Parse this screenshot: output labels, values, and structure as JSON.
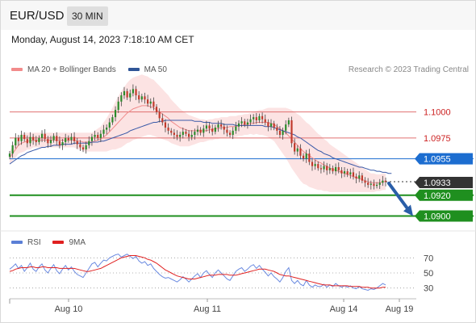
{
  "header": {
    "symbol": "EUR/USD",
    "timeframe": "30 MIN"
  },
  "timestamp": "Monday, August 14, 2023 7:18:10 AM CET",
  "legend": {
    "items": [
      {
        "label": "MA 20 + Bollinger Bands",
        "color": "#f28b8b"
      },
      {
        "label": "MA 50",
        "color": "#2f5597"
      }
    ]
  },
  "credit": "Research © 2023 Trading Central",
  "chart_data": {
    "type": "candlestick",
    "price_range": [
      1.0888,
      1.103
    ],
    "x_ticks": [
      "Aug 10",
      "Aug 11",
      "Aug 14",
      "Aug 19"
    ],
    "levels": [
      {
        "label": "1.1000",
        "value": 1.1,
        "kind": "resistance",
        "color": "#e07070"
      },
      {
        "label": "1.0975",
        "value": 1.0975,
        "kind": "resistance",
        "color": "#e07070"
      },
      {
        "label": "1.0955",
        "value": 1.0955,
        "kind": "pivot",
        "color": "#1c6dd0"
      },
      {
        "label": "1.0933",
        "value": 1.0933,
        "kind": "last",
        "color": "#333333"
      },
      {
        "label": "1.0920",
        "value": 1.092,
        "kind": "support",
        "color": "#1f8f1f"
      },
      {
        "label": "1.0900",
        "value": 1.09,
        "kind": "support",
        "color": "#1f8f1f"
      }
    ],
    "closes": [
      1.096,
      1.0968,
      1.0975,
      1.0972,
      1.0978,
      1.0974,
      1.097,
      1.0976,
      1.0973,
      1.0971,
      1.0975,
      1.0979,
      1.0974,
      1.097,
      1.0973,
      1.0977,
      1.0972,
      1.0968,
      1.0971,
      1.0975,
      1.0973,
      1.0976,
      1.0972,
      1.0969,
      1.0966,
      1.0964,
      1.0968,
      1.0972,
      1.0976,
      1.0978,
      1.0975,
      1.0979,
      1.0983,
      1.0985,
      1.099,
      1.0995,
      1.1002,
      1.101,
      1.1016,
      1.102,
      1.1014,
      1.1018,
      1.1022,
      1.1016,
      1.1012,
      1.1015,
      1.1012,
      1.1008,
      1.101,
      1.1005,
      1.1,
      1.0994,
      1.099,
      1.0985,
      1.0982,
      1.098,
      1.0978,
      1.0976,
      1.0978,
      1.0981,
      1.0979,
      1.0976,
      1.0978,
      1.0981,
      1.0983,
      1.098,
      1.0984,
      1.0987,
      1.0984,
      1.0981,
      1.0985,
      1.0988,
      1.0986,
      1.0983,
      1.098,
      1.0978,
      1.0982,
      1.0986,
      1.0989,
      1.0991,
      1.0988,
      1.099,
      1.0993,
      1.0995,
      1.0992,
      1.0996,
      1.0993,
      1.099,
      1.0986,
      1.0989,
      1.0985,
      1.0982,
      1.0978,
      1.0982,
      1.0988,
      1.0992,
      1.097,
      1.0962,
      1.0965,
      1.0958,
      1.0955,
      1.096,
      1.0952,
      1.0948,
      1.095,
      1.0946,
      1.0945,
      1.0948,
      1.0944,
      1.0946,
      1.0943,
      1.0947,
      1.0944,
      1.0941,
      1.0943,
      1.094,
      1.0942,
      1.0938,
      1.0936,
      1.0939,
      1.0934,
      1.0932,
      1.093,
      1.0931,
      1.0929,
      1.093,
      1.0932,
      1.0934,
      1.0933
    ],
    "ma20": [
      1.0956,
      1.096,
      1.0964,
      1.0968,
      1.097,
      1.0971,
      1.0972,
      1.0972,
      1.0973,
      1.0973,
      1.0973,
      1.0973,
      1.0973,
      1.0973,
      1.0973,
      1.0973,
      1.0973,
      1.0973,
      1.0973,
      1.0973,
      1.0973,
      1.0973,
      1.0973,
      1.0972,
      1.0972,
      1.0971,
      1.0971,
      1.0971,
      1.0971,
      1.0972,
      1.0973,
      1.0974,
      1.0976,
      1.0978,
      1.0981,
      1.0984,
      1.0987,
      1.099,
      1.0993,
      1.0996,
      1.0999,
      1.1001,
      1.1003,
      1.1004,
      1.1005,
      1.1006,
      1.1006,
      1.1006,
      1.1005,
      1.1004,
      1.1002,
      1.1,
      1.0998,
      1.0996,
      1.0994,
      1.0991,
      1.0989,
      1.0987,
      1.0985,
      1.0984,
      1.0983,
      1.0982,
      1.0982,
      1.0982,
      1.0982,
      1.0982,
      1.0982,
      1.0982,
      1.0983,
      1.0983,
      1.0984,
      1.0984,
      1.0985,
      1.0985,
      1.0985,
      1.0986,
      1.0986,
      1.0986,
      1.0987,
      1.0987,
      1.0988,
      1.0988,
      1.0989,
      1.0989,
      1.099,
      1.099,
      1.099,
      1.099,
      1.099,
      1.0989,
      1.0988,
      1.0986,
      1.0984,
      1.0982,
      1.098,
      1.0977,
      1.0974,
      1.0971,
      1.0968,
      1.0965,
      1.0962,
      1.096,
      1.0958,
      1.0956,
      1.0954,
      1.0952,
      1.0951,
      1.0949,
      1.0948,
      1.0946,
      1.0945,
      1.0944,
      1.0943,
      1.0942,
      1.0941,
      1.094,
      1.0939,
      1.0938,
      1.0937,
      1.0936,
      1.0935,
      1.0934,
      1.0933,
      1.0932,
      1.0932,
      1.0932,
      1.0932,
      1.0933,
      1.0933
    ],
    "ma50": [
      1.095,
      1.0952,
      1.0954,
      1.0956,
      1.0958,
      1.0959,
      1.0961,
      1.0962,
      1.0963,
      1.0964,
      1.0965,
      1.0966,
      1.0966,
      1.0967,
      1.0967,
      1.0968,
      1.0968,
      1.0968,
      1.0969,
      1.0969,
      1.0969,
      1.0969,
      1.097,
      1.097,
      1.097,
      1.097,
      1.097,
      1.097,
      1.0971,
      1.0971,
      1.0971,
      1.0972,
      1.0972,
      1.0973,
      1.0974,
      1.0975,
      1.0976,
      1.0977,
      1.0978,
      1.0979,
      1.098,
      1.0982,
      1.0983,
      1.0984,
      1.0985,
      1.0986,
      1.0987,
      1.0988,
      1.0989,
      1.099,
      1.099,
      1.0991,
      1.0991,
      1.0992,
      1.0992,
      1.0992,
      1.0992,
      1.0992,
      1.0992,
      1.0992,
      1.0992,
      1.0992,
      1.0992,
      1.0991,
      1.0991,
      1.0991,
      1.099,
      1.099,
      1.099,
      1.0989,
      1.0989,
      1.0989,
      1.0989,
      1.0988,
      1.0988,
      1.0988,
      1.0988,
      1.0987,
      1.0987,
      1.0987,
      1.0987,
      1.0987,
      1.0987,
      1.0987,
      1.0987,
      1.0987,
      1.0987,
      1.0986,
      1.0986,
      1.0986,
      1.0985,
      1.0984,
      1.0983,
      1.0982,
      1.0981,
      1.098,
      1.0979,
      1.0978,
      1.0976,
      1.0975,
      1.0973,
      1.0971,
      1.0969,
      1.0967,
      1.0965,
      1.0963,
      1.0962,
      1.096,
      1.0959,
      1.0958,
      1.0956,
      1.0955,
      1.0954,
      1.0953,
      1.0952,
      1.0951,
      1.095,
      1.0949,
      1.0948,
      1.0947,
      1.0947,
      1.0946,
      1.0945,
      1.0944,
      1.0944,
      1.0943,
      1.0943,
      1.0942,
      1.0942,
      1.0941,
      1.0941
    ],
    "bands_width": [
      0.0006,
      0.0007,
      0.0008,
      0.0008,
      0.0009,
      0.0009,
      0.0008,
      0.0008,
      0.0007,
      0.0007,
      0.0007,
      0.0007,
      0.0007,
      0.0007,
      0.0007,
      0.0007,
      0.0007,
      0.0007,
      0.0007,
      0.0007,
      0.0007,
      0.0007,
      0.0007,
      0.0008,
      0.0008,
      0.0009,
      0.0009,
      0.0009,
      0.0009,
      0.001,
      0.0011,
      0.0012,
      0.0014,
      0.0016,
      0.0018,
      0.002,
      0.0023,
      0.0025,
      0.0027,
      0.0028,
      0.0029,
      0.003,
      0.003,
      0.003,
      0.003,
      0.003,
      0.0029,
      0.0028,
      0.0027,
      0.0027,
      0.0026,
      0.0025,
      0.0024,
      0.0023,
      0.0022,
      0.0021,
      0.002,
      0.0019,
      0.0018,
      0.0017,
      0.0016,
      0.0015,
      0.0014,
      0.0013,
      0.0012,
      0.0011,
      0.0011,
      0.001,
      0.001,
      0.001,
      0.001,
      0.001,
      0.001,
      0.001,
      0.001,
      0.001,
      0.001,
      0.001,
      0.001,
      0.001,
      0.001,
      0.001,
      0.001,
      0.0011,
      0.0011,
      0.0012,
      0.0012,
      0.0013,
      0.0014,
      0.0015,
      0.0016,
      0.0018,
      0.002,
      0.0022,
      0.0024,
      0.0026,
      0.0028,
      0.0029,
      0.003,
      0.0031,
      0.0031,
      0.003,
      0.003,
      0.0029,
      0.0028,
      0.0027,
      0.0026,
      0.0025,
      0.0024,
      0.0023,
      0.0022,
      0.0021,
      0.002,
      0.0019,
      0.0018,
      0.0017,
      0.0016,
      0.0015,
      0.0014,
      0.0013,
      0.0012,
      0.0011,
      0.001,
      0.0009,
      0.0009,
      0.0008,
      0.0008,
      0.0008,
      0.0008
    ],
    "projection": {
      "from": 1.0933,
      "to": 1.09
    },
    "rsi": {
      "levels": [
        70,
        50,
        30
      ],
      "range": [
        20,
        80
      ],
      "rsi": [
        55,
        58,
        62,
        56,
        60,
        52,
        57,
        63,
        55,
        52,
        58,
        62,
        54,
        50,
        56,
        61,
        53,
        49,
        55,
        60,
        54,
        58,
        52,
        48,
        46,
        44,
        50,
        56,
        62,
        64,
        58,
        63,
        67,
        66,
        70,
        72,
        74,
        75,
        71,
        73,
        75,
        72,
        69,
        72,
        66,
        63,
        65,
        60,
        62,
        56,
        52,
        48,
        45,
        43,
        44,
        42,
        40,
        38,
        41,
        45,
        42,
        38,
        42,
        46,
        49,
        44,
        50,
        53,
        48,
        44,
        50,
        54,
        50,
        46,
        42,
        40,
        46,
        52,
        55,
        57,
        52,
        55,
        59,
        61,
        56,
        60,
        55,
        51,
        46,
        50,
        45,
        42,
        38,
        44,
        52,
        57,
        40,
        36,
        40,
        35,
        33,
        40,
        34,
        31,
        34,
        32,
        32,
        35,
        31,
        34,
        32,
        36,
        33,
        31,
        33,
        31,
        33,
        30,
        29,
        32,
        29,
        28,
        27,
        29,
        28,
        30,
        33,
        36,
        34
      ],
      "ma9": [
        52,
        53,
        55,
        56,
        57,
        57,
        57,
        58,
        58,
        57,
        57,
        58,
        58,
        57,
        57,
        57,
        57,
        56,
        56,
        56,
        56,
        56,
        56,
        55,
        54,
        53,
        52,
        52,
        53,
        54,
        55,
        56,
        58,
        60,
        62,
        64,
        66,
        68,
        70,
        71,
        72,
        73,
        73,
        73,
        72,
        71,
        70,
        68,
        67,
        65,
        63,
        60,
        57,
        54,
        52,
        50,
        48,
        46,
        45,
        44,
        43,
        42,
        42,
        42,
        43,
        44,
        45,
        46,
        47,
        47,
        47,
        48,
        48,
        48,
        48,
        47,
        47,
        47,
        48,
        49,
        50,
        51,
        52,
        53,
        54,
        55,
        55,
        55,
        54,
        53,
        52,
        50,
        48,
        47,
        46,
        46,
        45,
        44,
        43,
        42,
        41,
        40,
        39,
        38,
        37,
        36,
        35,
        34,
        34,
        34,
        33,
        33,
        33,
        33,
        33,
        33,
        32,
        32,
        32,
        32,
        31,
        31,
        31,
        30,
        30,
        30,
        30,
        31,
        31
      ]
    }
  }
}
